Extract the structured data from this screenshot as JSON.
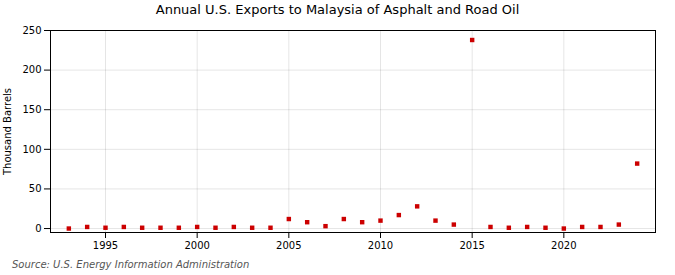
{
  "chart_data": {
    "type": "scatter",
    "title": "Annual U.S. Exports to Malaysia of Asphalt and Road Oil",
    "ylabel": "Thousand Barrels",
    "source": "Source: U.S. Energy Information Administration",
    "x": [
      1993,
      1994,
      1995,
      1996,
      1997,
      1998,
      1999,
      2000,
      2001,
      2002,
      2003,
      2004,
      2005,
      2006,
      2007,
      2008,
      2009,
      2010,
      2011,
      2012,
      2013,
      2014,
      2015,
      2016,
      2017,
      2018,
      2019,
      2020,
      2021,
      2022,
      2023,
      2024
    ],
    "values": [
      0,
      2,
      1,
      2,
      1,
      1,
      1,
      2,
      1,
      2,
      1,
      1,
      12,
      8,
      3,
      12,
      8,
      10,
      17,
      28,
      10,
      5,
      238,
      2,
      1,
      2,
      1,
      0,
      2,
      2,
      5,
      82
    ],
    "color": "#cc0000",
    "marker": "square",
    "xlim": [
      1992,
      2025
    ],
    "xticks": [
      1995,
      2000,
      2005,
      2010,
      2015,
      2020
    ],
    "ylim": [
      -5,
      250
    ],
    "yticks": [
      0,
      50,
      100,
      150,
      200,
      250
    ],
    "grid": true
  }
}
